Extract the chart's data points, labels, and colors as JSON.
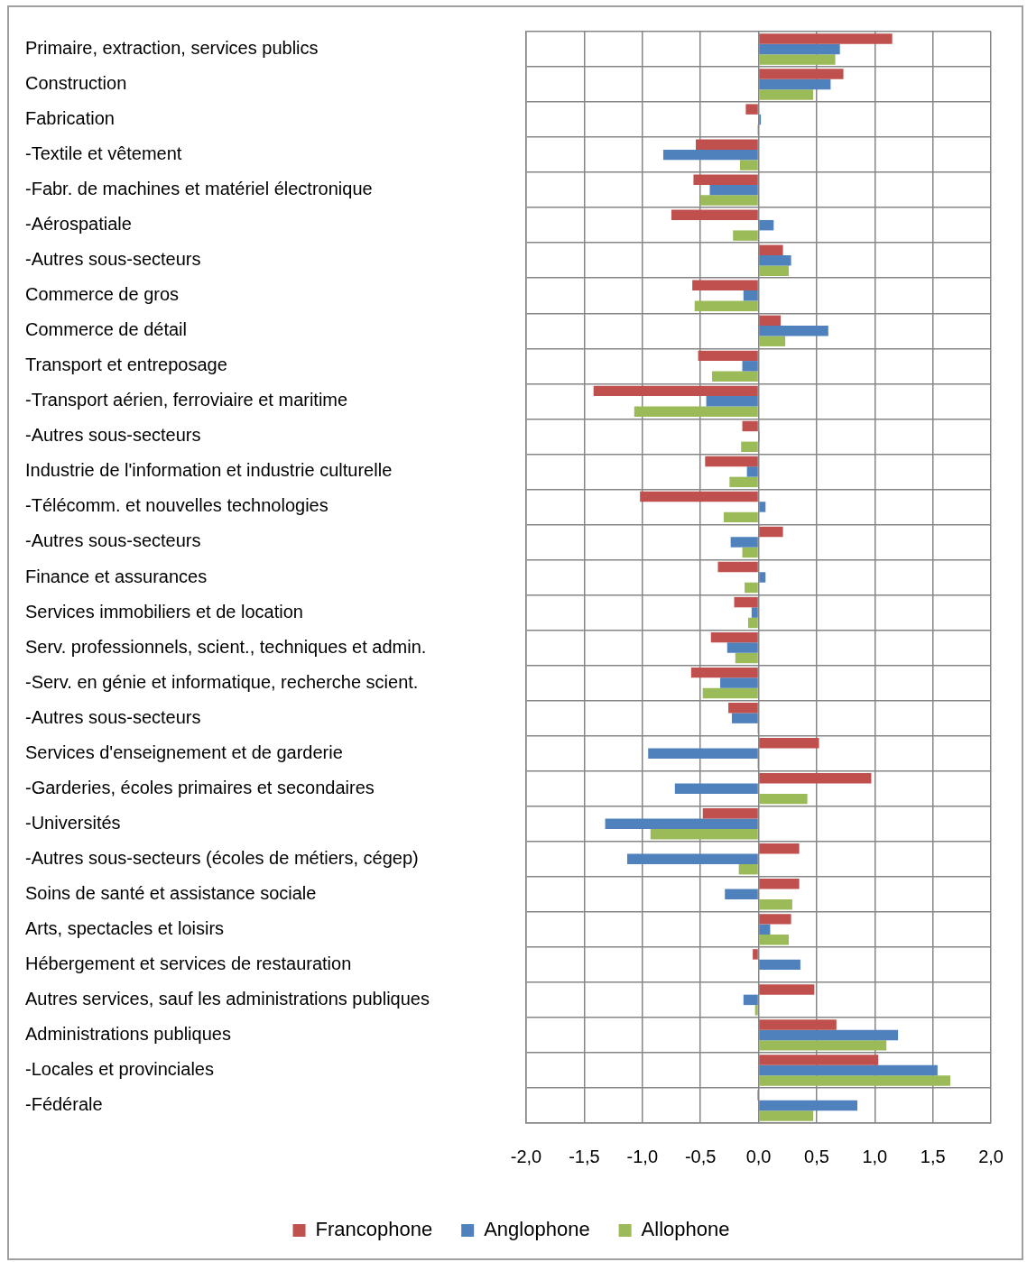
{
  "chart_data": {
    "type": "bar",
    "orientation": "horizontal",
    "categories": [
      "Primaire, extraction, services publics",
      "Construction",
      "Fabrication",
      "-Textile et vêtement",
      "-Fabr. de machines et matériel électronique",
      "-Aérospatiale",
      "-Autres sous-secteurs",
      "Commerce de gros",
      "Commerce de détail",
      "Transport et entreposage",
      "-Transport aérien, ferroviaire et maritime",
      "-Autres sous-secteurs",
      "Industrie de l'information et industrie culturelle",
      "-Télécomm. et nouvelles technologies",
      "-Autres sous-secteurs",
      "Finance et assurances",
      "Services immobiliers et de location",
      "Serv. professionnels, scient., techniques et admin.",
      "-Serv. en génie et informatique, recherche scient.",
      "-Autres sous-secteurs",
      "Services d'enseignement et de garderie",
      "-Garderies, écoles primaires et secondaires",
      "-Universités",
      "-Autres sous-secteurs (écoles de métiers, cégep)",
      "Soins de santé et assistance sociale",
      "Arts, spectacles et loisirs",
      "Hébergement et services de restauration",
      "Autres services, sauf les administrations publiques",
      "Administrations publiques",
      "-Locales et provinciales",
      "-Fédérale"
    ],
    "series": [
      {
        "name": "Francophone",
        "color": "#c0504d",
        "values": [
          1.15,
          0.73,
          -0.11,
          -0.54,
          -0.56,
          -0.75,
          0.21,
          -0.57,
          0.19,
          -0.52,
          -1.42,
          -0.14,
          -0.46,
          -1.02,
          0.21,
          -0.35,
          -0.21,
          -0.41,
          -0.58,
          -0.26,
          0.52,
          0.97,
          -0.48,
          0.35,
          0.35,
          0.28,
          -0.05,
          0.48,
          0.67,
          1.03,
          -0.01
        ]
      },
      {
        "name": "Anglophone",
        "color": "#4f81bd",
        "values": [
          0.7,
          0.62,
          0.02,
          -0.82,
          -0.42,
          0.13,
          0.28,
          -0.13,
          0.6,
          -0.14,
          -0.45,
          0.01,
          -0.1,
          0.06,
          -0.24,
          0.06,
          -0.06,
          -0.27,
          -0.33,
          -0.23,
          -0.95,
          -0.72,
          -1.32,
          -1.13,
          -0.29,
          0.1,
          0.36,
          -0.13,
          1.2,
          1.54,
          0.85
        ]
      },
      {
        "name": "Allophone",
        "color": "#9bbb59",
        "values": [
          0.66,
          0.47,
          -0.01,
          -0.16,
          -0.5,
          -0.22,
          0.26,
          -0.55,
          0.23,
          -0.4,
          -1.07,
          -0.15,
          -0.25,
          -0.3,
          -0.14,
          -0.12,
          -0.09,
          -0.2,
          -0.48,
          -0.01,
          -0.01,
          0.42,
          -0.93,
          -0.17,
          0.29,
          0.26,
          0,
          -0.03,
          1.1,
          1.65,
          0.47
        ]
      }
    ],
    "xlim": [
      -2,
      2
    ],
    "xticks": [
      {
        "value": -2,
        "label": "-2,0"
      },
      {
        "value": -1.5,
        "label": "-1,5"
      },
      {
        "value": -1,
        "label": "-1,0"
      },
      {
        "value": -0.5,
        "label": "-0,5"
      },
      {
        "value": 0,
        "label": "0,0"
      },
      {
        "value": 0.5,
        "label": "0,5"
      },
      {
        "value": 1,
        "label": "1,0"
      },
      {
        "value": 1.5,
        "label": "1,5"
      },
      {
        "value": 2,
        "label": "2,0"
      }
    ],
    "grid": true,
    "legend": "bottom"
  }
}
